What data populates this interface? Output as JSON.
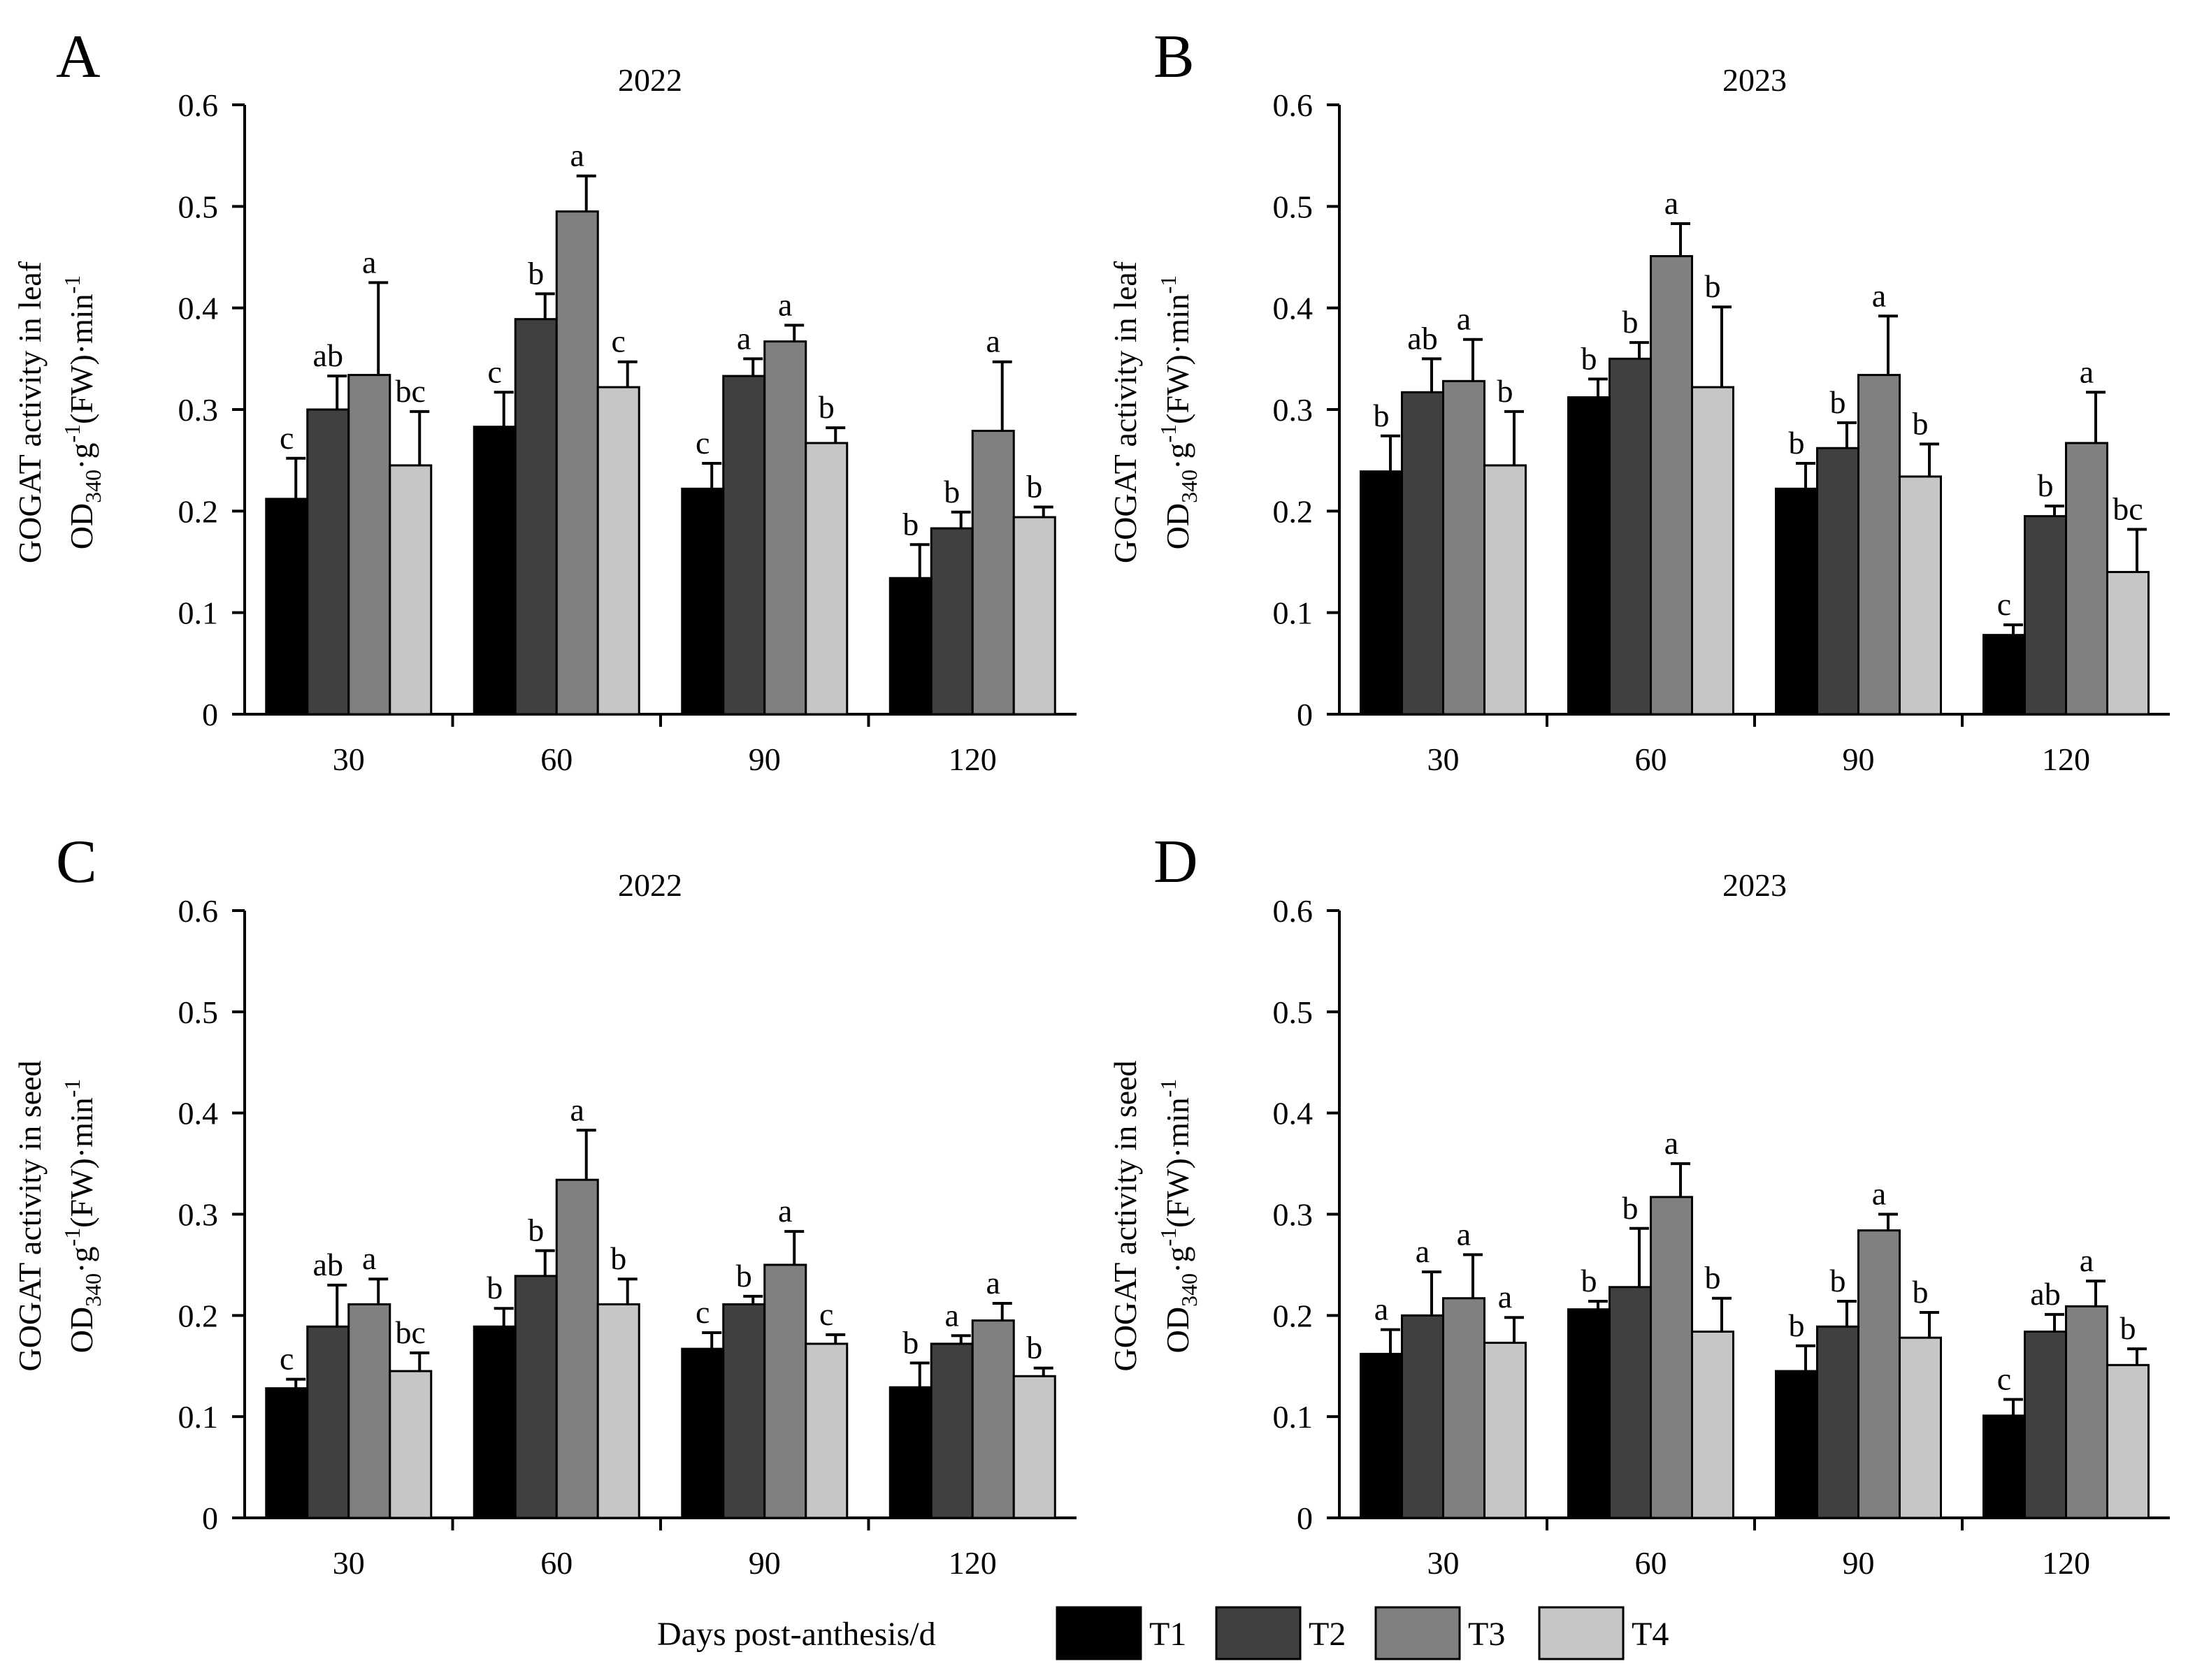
{
  "legend": {
    "xlabel": "Days post-anthesis/d",
    "items": [
      {
        "name": "T1",
        "color": "#000000"
      },
      {
        "name": "T2",
        "color": "#404040"
      },
      {
        "name": "T3",
        "color": "#808080"
      },
      {
        "name": "T4",
        "color": "#c6c6c6"
      }
    ]
  },
  "chart_data": [
    {
      "panel": "A",
      "type": "bar",
      "title": "2022",
      "ylabel_line1": "GOGAT activity in leaf",
      "ylabel_main": "OD",
      "ylabel_sub": "340",
      "ylabel_mid": "·g",
      "ylabel_sup1": "-1",
      "ylabel_tail": "(FW)·min",
      "ylabel_sup2": "-1",
      "xlabel": "Days post-anthesis/d",
      "categories": [
        "30",
        "60",
        "90",
        "120"
      ],
      "ylim": [
        0,
        0.6
      ],
      "yticks": [
        "0",
        "0.1",
        "0.2",
        "0.3",
        "0.4",
        "0.5",
        "0.6"
      ],
      "series": [
        {
          "name": "T1",
          "values": [
            0.212,
            0.283,
            0.222,
            0.134
          ],
          "errors": [
            0.04,
            0.034,
            0.025,
            0.033
          ],
          "letters": [
            "c",
            "c",
            "c",
            "b"
          ]
        },
        {
          "name": "T2",
          "values": [
            0.3,
            0.389,
            0.333,
            0.183
          ],
          "errors": [
            0.033,
            0.025,
            0.017,
            0.016
          ],
          "letters": [
            "ab",
            "b",
            "a",
            "b"
          ]
        },
        {
          "name": "T3",
          "values": [
            0.334,
            0.495,
            0.367,
            0.279
          ],
          "errors": [
            0.091,
            0.035,
            0.016,
            0.068
          ],
          "letters": [
            "a",
            "a",
            "a",
            "a"
          ]
        },
        {
          "name": "T4",
          "values": [
            0.245,
            0.322,
            0.267,
            0.194
          ],
          "errors": [
            0.053,
            0.025,
            0.015,
            0.01
          ],
          "letters": [
            "bc",
            "c",
            "b",
            "b"
          ]
        }
      ]
    },
    {
      "panel": "B",
      "type": "bar",
      "title": "2023",
      "ylabel_line1": "GOGAT activity in leaf",
      "ylabel_main": "OD",
      "ylabel_sub": "340",
      "ylabel_mid": "·g",
      "ylabel_sup1": "-1",
      "ylabel_tail": "(FW)·min",
      "ylabel_sup2": "-1",
      "xlabel": "Days post-anthesis/d",
      "categories": [
        "30",
        "60",
        "90",
        "120"
      ],
      "ylim": [
        0,
        0.6
      ],
      "yticks": [
        "0",
        "0.1",
        "0.2",
        "0.3",
        "0.4",
        "0.5",
        "0.6"
      ],
      "series": [
        {
          "name": "T1",
          "values": [
            0.239,
            0.312,
            0.222,
            0.078
          ],
          "errors": [
            0.035,
            0.018,
            0.025,
            0.01
          ],
          "letters": [
            "b",
            "b",
            "b",
            "c"
          ]
        },
        {
          "name": "T2",
          "values": [
            0.317,
            0.35,
            0.262,
            0.195
          ],
          "errors": [
            0.033,
            0.016,
            0.025,
            0.01
          ],
          "letters": [
            "ab",
            "b",
            "b",
            "b"
          ]
        },
        {
          "name": "T3",
          "values": [
            0.328,
            0.451,
            0.334,
            0.267
          ],
          "errors": [
            0.041,
            0.032,
            0.058,
            0.05
          ],
          "letters": [
            "a",
            "a",
            "a",
            "a"
          ]
        },
        {
          "name": "T4",
          "values": [
            0.245,
            0.322,
            0.234,
            0.14
          ],
          "errors": [
            0.053,
            0.079,
            0.032,
            0.042
          ],
          "letters": [
            "b",
            "b",
            "b",
            "bc"
          ]
        }
      ]
    },
    {
      "panel": "C",
      "type": "bar",
      "title": "2022",
      "ylabel_line1": "GOGAT activity in seed",
      "ylabel_main": "OD",
      "ylabel_sub": "340",
      "ylabel_mid": "·g",
      "ylabel_sup1": "-1",
      "ylabel_tail": "(FW)·min",
      "ylabel_sup2": "-1",
      "xlabel": "Days post-anthesis/d",
      "categories": [
        "30",
        "60",
        "90",
        "120"
      ],
      "ylim": [
        0,
        0.6
      ],
      "yticks": [
        "0",
        "0.1",
        "0.2",
        "0.3",
        "0.4",
        "0.5",
        "0.6"
      ],
      "series": [
        {
          "name": "T1",
          "values": [
            0.128,
            0.189,
            0.167,
            0.129
          ],
          "errors": [
            0.009,
            0.018,
            0.016,
            0.024
          ],
          "letters": [
            "c",
            "b",
            "c",
            "b"
          ]
        },
        {
          "name": "T2",
          "values": [
            0.189,
            0.239,
            0.211,
            0.172
          ],
          "errors": [
            0.041,
            0.025,
            0.008,
            0.008
          ],
          "letters": [
            "ab",
            "b",
            "b",
            "a"
          ]
        },
        {
          "name": "T3",
          "values": [
            0.211,
            0.334,
            0.25,
            0.195
          ],
          "errors": [
            0.025,
            0.049,
            0.033,
            0.017
          ],
          "letters": [
            "a",
            "a",
            "a",
            "a"
          ]
        },
        {
          "name": "T4",
          "values": [
            0.145,
            0.211,
            0.172,
            0.14
          ],
          "errors": [
            0.018,
            0.025,
            0.009,
            0.008
          ],
          "letters": [
            "bc",
            "b",
            "c",
            "b"
          ]
        }
      ]
    },
    {
      "panel": "D",
      "type": "bar",
      "title": "2023",
      "ylabel_line1": "GOGAT activity in seed",
      "ylabel_main": "OD",
      "ylabel_sub": "340",
      "ylabel_mid": "·g",
      "ylabel_sup1": "-1",
      "ylabel_tail": "(FW)·min",
      "ylabel_sup2": "-1",
      "xlabel": "Days post-anthesis/d",
      "categories": [
        "30",
        "60",
        "90",
        "120"
      ],
      "ylim": [
        0,
        0.6
      ],
      "yticks": [
        "0",
        "0.1",
        "0.2",
        "0.3",
        "0.4",
        "0.5",
        "0.6"
      ],
      "series": [
        {
          "name": "T1",
          "values": [
            0.162,
            0.206,
            0.145,
            0.101
          ],
          "errors": [
            0.024,
            0.008,
            0.025,
            0.016
          ],
          "letters": [
            "a",
            "b",
            "b",
            "c"
          ]
        },
        {
          "name": "T2",
          "values": [
            0.2,
            0.228,
            0.189,
            0.184
          ],
          "errors": [
            0.043,
            0.058,
            0.025,
            0.017
          ],
          "letters": [
            "a",
            "b",
            "b",
            "ab"
          ]
        },
        {
          "name": "T3",
          "values": [
            0.217,
            0.317,
            0.284,
            0.209
          ],
          "errors": [
            0.043,
            0.033,
            0.016,
            0.025
          ],
          "letters": [
            "a",
            "a",
            "a",
            "a"
          ]
        },
        {
          "name": "T4",
          "values": [
            0.173,
            0.184,
            0.178,
            0.151
          ],
          "errors": [
            0.025,
            0.033,
            0.025,
            0.016
          ],
          "letters": [
            "a",
            "b",
            "b",
            "b"
          ]
        }
      ]
    }
  ]
}
